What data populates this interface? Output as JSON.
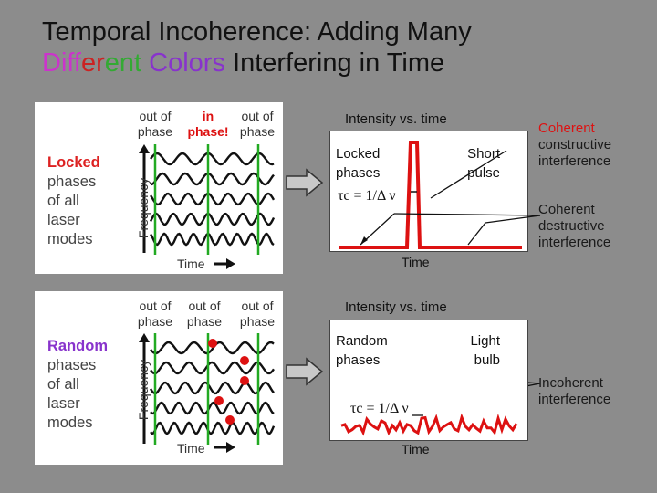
{
  "title": {
    "line1": "Temporal Incoherence:  Adding Many",
    "line2_parts": [
      {
        "text": "Diff",
        "color": "#cc33cc"
      },
      {
        "text": "er",
        "color": "#cc2222"
      },
      {
        "text": "ent ",
        "color": "#33aa33"
      },
      {
        "text": "Colors",
        "color": "#8833cc"
      },
      {
        "text": " Interfering in Time",
        "color": "#111111"
      }
    ]
  },
  "top_left": {
    "columns": [
      {
        "line1": "out of",
        "line2": "phase",
        "color": "#555555"
      },
      {
        "line1": "in",
        "line2": "phase!",
        "color": "#dd1111"
      },
      {
        "line1": "out of",
        "line2": "phase",
        "color": "#555555"
      }
    ],
    "side_label": {
      "highlight": "Locked",
      "rest": [
        "phases",
        "of all",
        "laser",
        "modes"
      ],
      "highlight_color": "#dd2222"
    },
    "axis_y": "Frequency",
    "axis_x": "Time"
  },
  "top_right": {
    "heading": "Intensity vs. time",
    "label_left": [
      "Locked",
      "phases"
    ],
    "formula": "τc = 1/Δ ν",
    "label_right": [
      "Short",
      "pulse"
    ],
    "axis_x": "Time"
  },
  "top_notes": {
    "constructive": {
      "highlight": "Coherent",
      "rest": [
        "constructive",
        "interference"
      ]
    },
    "destructive": [
      "Coherent",
      "destructive",
      "interference"
    ]
  },
  "bottom_left": {
    "columns": [
      {
        "line1": "out of",
        "line2": "phase",
        "color": "#555555"
      },
      {
        "line1": "out of",
        "line2": "phase",
        "color": "#555555"
      },
      {
        "line1": "out of",
        "line2": "phase",
        "color": "#555555"
      }
    ],
    "side_label": {
      "highlight": "Random",
      "rest": [
        "phases",
        "of all",
        "laser",
        "modes"
      ],
      "highlight_color": "#8833cc"
    },
    "axis_y": "Frequency",
    "axis_x": "Time"
  },
  "bottom_right": {
    "heading": "Intensity vs. time",
    "label_left": [
      "Random",
      "phases"
    ],
    "formula": "τc = 1/Δ ν",
    "label_right": [
      "Light",
      "bulb"
    ],
    "axis_x": "Time"
  },
  "bottom_notes": {
    "incoherent": [
      "Incoherent",
      "interference"
    ]
  },
  "colors": {
    "wave": "#111111",
    "marker_line": "#22aa22",
    "intensity": "#dd1111",
    "panel_bg": "#ffffff",
    "slide_bg": "#8c8c8c"
  }
}
